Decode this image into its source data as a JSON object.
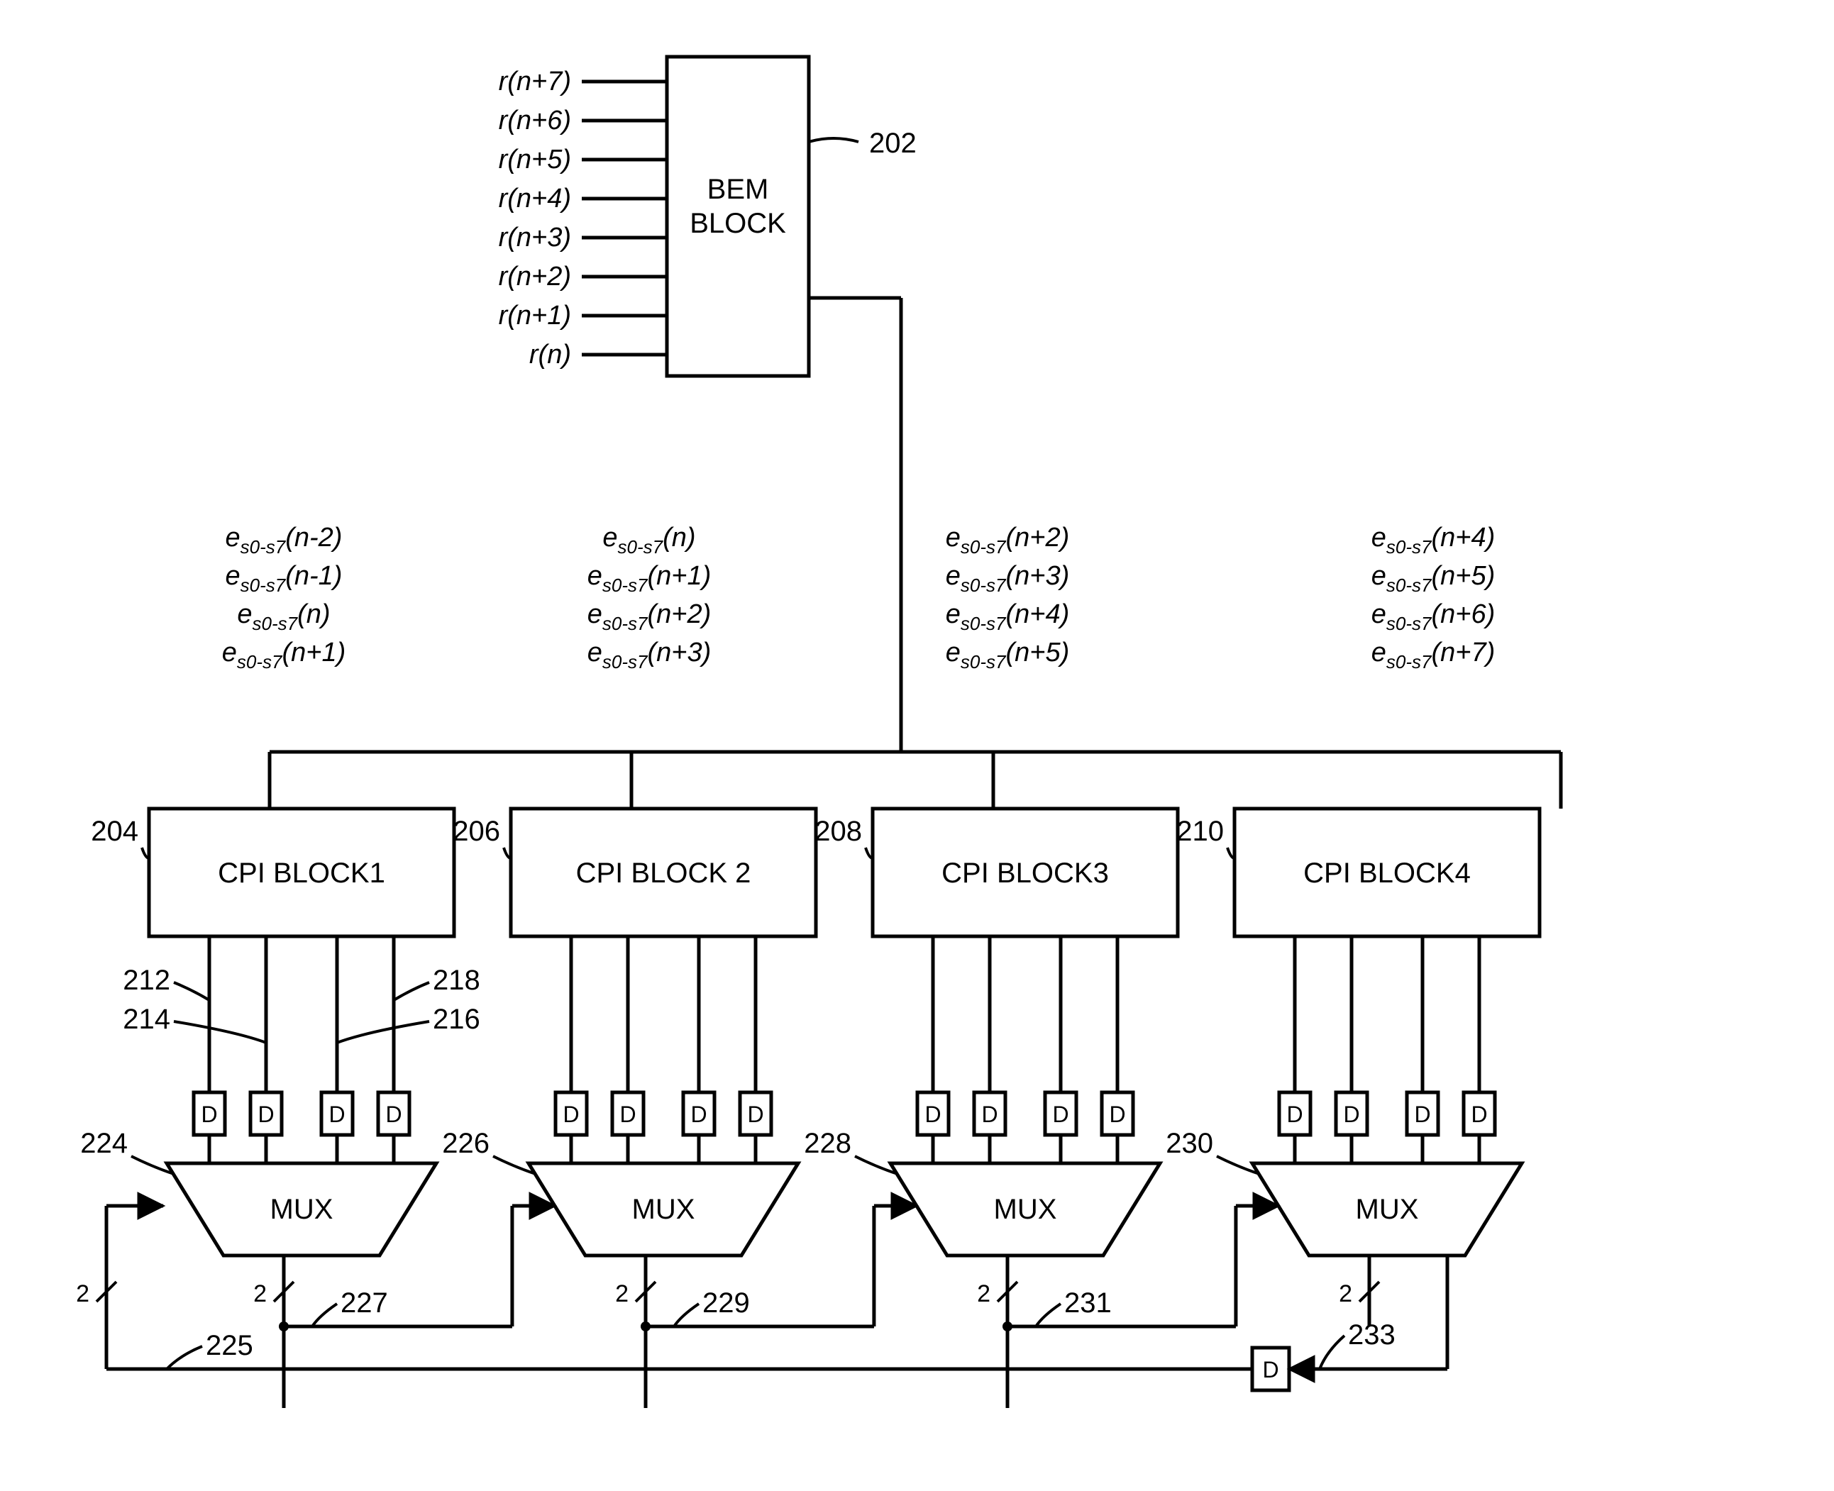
{
  "diagram": {
    "type": "block-diagram",
    "stroke_color": "#000000",
    "background_color": "#ffffff",
    "stroke_width_main": 5,
    "stroke_width_thin": 4,
    "font_family": "Arial",
    "font_size_signals": 38,
    "font_size_blocks": 40,
    "font_size_refs": 40,
    "font_size_dlabels": 32,
    "bem": {
      "label": "BEM\nBLOCK",
      "ref": "202",
      "inputs": [
        "r(n+7)",
        "r(n+6)",
        "r(n+5)",
        "r(n+4)",
        "r(n+3)",
        "r(n+2)",
        "r(n+1)",
        "r(n)"
      ]
    },
    "error_groups": [
      {
        "lines": [
          {
            "pre": "e",
            "sub": "s0-s7",
            "post": "(n-2)"
          },
          {
            "pre": "e",
            "sub": "s0-s7",
            "post": "(n-1)"
          },
          {
            "pre": "e",
            "sub": "s0-s7",
            "post": "(n)"
          },
          {
            "pre": "e",
            "sub": "s0-s7",
            "post": "(n+1)"
          }
        ]
      },
      {
        "lines": [
          {
            "pre": "e",
            "sub": "s0-s7",
            "post": "(n)"
          },
          {
            "pre": "e",
            "sub": "s0-s7",
            "post": "(n+1)"
          },
          {
            "pre": "e",
            "sub": "s0-s7",
            "post": "(n+2)"
          },
          {
            "pre": "e",
            "sub": "s0-s7",
            "post": "(n+3)"
          }
        ]
      },
      {
        "lines": [
          {
            "pre": "e",
            "sub": "s0-s7",
            "post": "(n+2)"
          },
          {
            "pre": "e",
            "sub": "s0-s7",
            "post": "(n+3)"
          },
          {
            "pre": "e",
            "sub": "s0-s7",
            "post": "(n+4)"
          },
          {
            "pre": "e",
            "sub": "s0-s7",
            "post": "(n+5)"
          }
        ]
      },
      {
        "lines": [
          {
            "pre": "e",
            "sub": "s0-s7",
            "post": "(n+4)"
          },
          {
            "pre": "e",
            "sub": "s0-s7",
            "post": "(n+5)"
          },
          {
            "pre": "e",
            "sub": "s0-s7",
            "post": "(n+6)"
          },
          {
            "pre": "e",
            "sub": "s0-s7",
            "post": "(n+7)"
          }
        ]
      }
    ],
    "cpi_blocks": [
      {
        "label": "CPI BLOCK1",
        "ref": "204"
      },
      {
        "label": "CPI BLOCK 2",
        "ref": "206"
      },
      {
        "label": "CPI BLOCK3",
        "ref": "208"
      },
      {
        "label": "CPI BLOCK4",
        "ref": "210"
      }
    ],
    "cpi_output_refs": [
      "212",
      "214",
      "216",
      "218"
    ],
    "mux_blocks": [
      {
        "label": "MUX",
        "ref": "224"
      },
      {
        "label": "MUX",
        "ref": "226"
      },
      {
        "label": "MUX",
        "ref": "228"
      },
      {
        "label": "MUX",
        "ref": "230"
      }
    ],
    "interconnect_refs": [
      "225",
      "227",
      "229",
      "231",
      "233"
    ],
    "bus_width_label": "2",
    "d_label": "D"
  }
}
